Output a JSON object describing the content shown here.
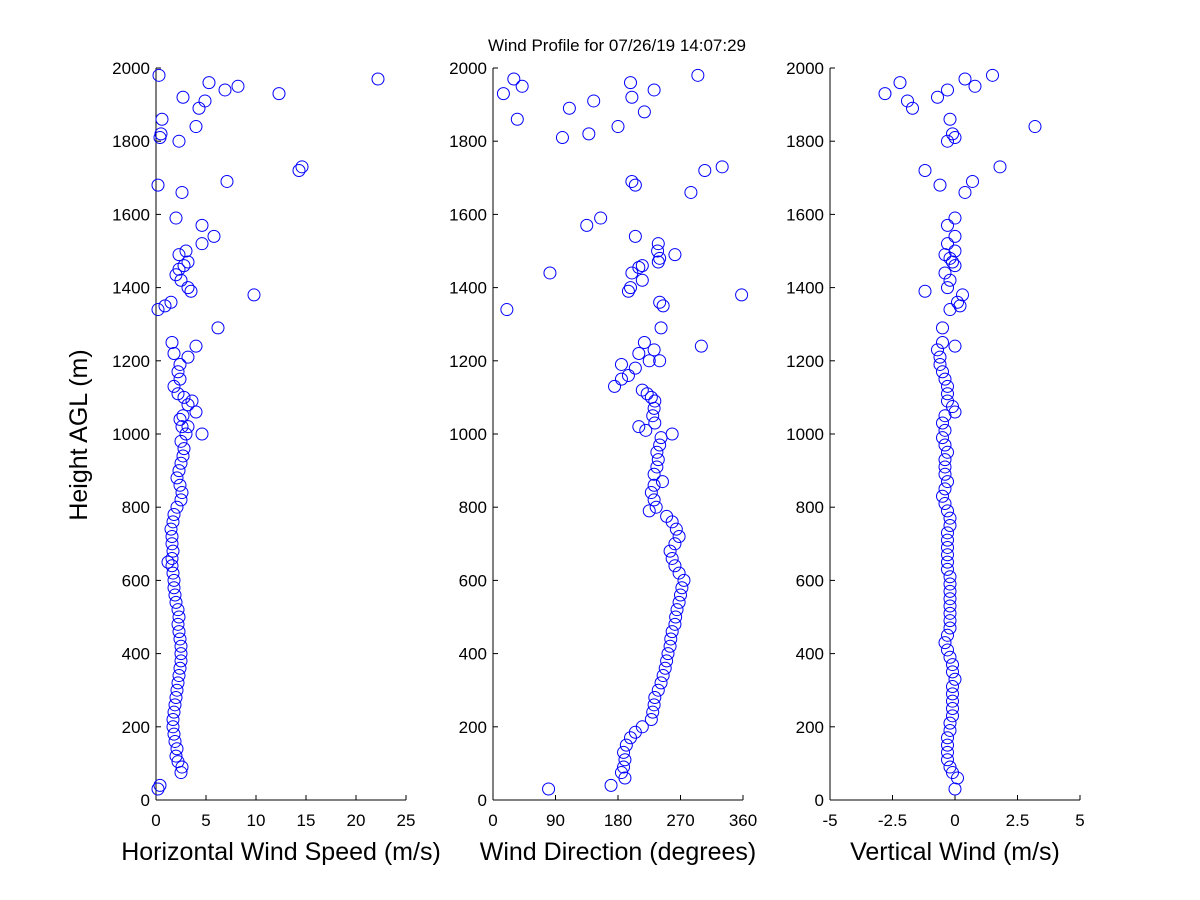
{
  "title": "Wind Profile for  07/26/19 14:07:29",
  "chart_data": [
    {
      "type": "scatter",
      "xlabel": "Horizontal Wind Speed (m/s)",
      "ylabel": "Height AGL (m)",
      "xlim": [
        0,
        25
      ],
      "ylim": [
        0,
        2000
      ],
      "xticks": [
        "0",
        "5",
        "10",
        "15",
        "20",
        "25"
      ],
      "yticks": [
        "0",
        "200",
        "400",
        "600",
        "800",
        "1000",
        "1200",
        "1400",
        "1600",
        "1800",
        "2000"
      ],
      "marker_color": "#0000ff",
      "points": [
        [
          0.2,
          30
        ],
        [
          0.4,
          40
        ],
        [
          2.5,
          75
        ],
        [
          2.6,
          90
        ],
        [
          2.2,
          105
        ],
        [
          2.0,
          120
        ],
        [
          2.1,
          140
        ],
        [
          1.9,
          160
        ],
        [
          1.8,
          180
        ],
        [
          1.7,
          200
        ],
        [
          1.7,
          220
        ],
        [
          1.8,
          240
        ],
        [
          1.9,
          260
        ],
        [
          2.0,
          280
        ],
        [
          2.1,
          300
        ],
        [
          2.2,
          320
        ],
        [
          2.3,
          340
        ],
        [
          2.4,
          360
        ],
        [
          2.5,
          380
        ],
        [
          2.5,
          400
        ],
        [
          2.5,
          420
        ],
        [
          2.4,
          440
        ],
        [
          2.3,
          460
        ],
        [
          2.2,
          480
        ],
        [
          2.3,
          500
        ],
        [
          2.2,
          520
        ],
        [
          2.0,
          540
        ],
        [
          1.9,
          560
        ],
        [
          1.8,
          580
        ],
        [
          1.8,
          600
        ],
        [
          1.7,
          620
        ],
        [
          1.6,
          640
        ],
        [
          1.2,
          650
        ],
        [
          1.6,
          660
        ],
        [
          1.7,
          680
        ],
        [
          1.6,
          700
        ],
        [
          1.6,
          720
        ],
        [
          1.5,
          740
        ],
        [
          1.7,
          760
        ],
        [
          1.8,
          780
        ],
        [
          2.1,
          800
        ],
        [
          2.5,
          820
        ],
        [
          2.6,
          840
        ],
        [
          2.4,
          860
        ],
        [
          2.1,
          880
        ],
        [
          2.3,
          900
        ],
        [
          2.5,
          920
        ],
        [
          2.7,
          940
        ],
        [
          2.8,
          960
        ],
        [
          2.5,
          980
        ],
        [
          3.0,
          1000
        ],
        [
          4.6,
          1000
        ],
        [
          2.6,
          1020
        ],
        [
          3.2,
          1020
        ],
        [
          2.4,
          1040
        ],
        [
          2.7,
          1050
        ],
        [
          4.0,
          1060
        ],
        [
          3.2,
          1080
        ],
        [
          3.6,
          1090
        ],
        [
          2.8,
          1100
        ],
        [
          2.2,
          1110
        ],
        [
          1.8,
          1130
        ],
        [
          2.4,
          1150
        ],
        [
          2.2,
          1170
        ],
        [
          2.4,
          1190
        ],
        [
          3.2,
          1210
        ],
        [
          1.8,
          1220
        ],
        [
          1.6,
          1250
        ],
        [
          4.0,
          1240
        ],
        [
          6.2,
          1290
        ],
        [
          9.8,
          1380
        ],
        [
          0.2,
          1340
        ],
        [
          0.9,
          1350
        ],
        [
          1.5,
          1360
        ],
        [
          3.5,
          1390
        ],
        [
          3.2,
          1400
        ],
        [
          2.5,
          1420
        ],
        [
          2.0,
          1435
        ],
        [
          2.3,
          1450
        ],
        [
          2.8,
          1460
        ],
        [
          3.2,
          1470
        ],
        [
          2.3,
          1490
        ],
        [
          3.0,
          1500
        ],
        [
          4.6,
          1520
        ],
        [
          5.8,
          1540
        ],
        [
          4.6,
          1570
        ],
        [
          2.0,
          1590
        ],
        [
          2.6,
          1660
        ],
        [
          0.2,
          1680
        ],
        [
          7.1,
          1690
        ],
        [
          14.3,
          1720
        ],
        [
          14.6,
          1730
        ],
        [
          2.3,
          1800
        ],
        [
          0.4,
          1810
        ],
        [
          0.5,
          1820
        ],
        [
          4.0,
          1840
        ],
        [
          0.6,
          1860
        ],
        [
          4.3,
          1890
        ],
        [
          2.7,
          1920
        ],
        [
          4.9,
          1910
        ],
        [
          12.3,
          1930
        ],
        [
          6.9,
          1940
        ],
        [
          8.2,
          1950
        ],
        [
          5.3,
          1960
        ],
        [
          22.2,
          1970
        ],
        [
          0.3,
          1980
        ]
      ]
    },
    {
      "type": "scatter",
      "xlabel": "Wind Direction (degrees)",
      "xlim": [
        0,
        360
      ],
      "ylim": [
        0,
        2000
      ],
      "xticks": [
        "0",
        "90",
        "180",
        "270",
        "360"
      ],
      "yticks": [
        "0",
        "200",
        "400",
        "600",
        "800",
        "1000",
        "1200",
        "1400",
        "1600",
        "1800",
        "2000"
      ],
      "marker_color": "#0000ff",
      "points": [
        [
          80,
          30
        ],
        [
          170,
          40
        ],
        [
          190,
          60
        ],
        [
          185,
          75
        ],
        [
          188,
          90
        ],
        [
          190,
          110
        ],
        [
          188,
          130
        ],
        [
          192,
          150
        ],
        [
          198,
          170
        ],
        [
          205,
          185
        ],
        [
          215,
          200
        ],
        [
          228,
          220
        ],
        [
          230,
          240
        ],
        [
          232,
          260
        ],
        [
          233,
          280
        ],
        [
          238,
          300
        ],
        [
          242,
          320
        ],
        [
          245,
          340
        ],
        [
          248,
          360
        ],
        [
          250,
          380
        ],
        [
          252,
          400
        ],
        [
          255,
          420
        ],
        [
          256,
          440
        ],
        [
          258,
          460
        ],
        [
          262,
          480
        ],
        [
          263,
          500
        ],
        [
          265,
          520
        ],
        [
          268,
          540
        ],
        [
          270,
          560
        ],
        [
          272,
          580
        ],
        [
          275,
          600
        ],
        [
          268,
          620
        ],
        [
          262,
          640
        ],
        [
          258,
          660
        ],
        [
          255,
          680
        ],
        [
          262,
          700
        ],
        [
          268,
          720
        ],
        [
          264,
          740
        ],
        [
          258,
          760
        ],
        [
          250,
          775
        ],
        [
          225,
          790
        ],
        [
          235,
          800
        ],
        [
          232,
          820
        ],
        [
          228,
          840
        ],
        [
          232,
          860
        ],
        [
          244,
          870
        ],
        [
          232,
          890
        ],
        [
          236,
          910
        ],
        [
          238,
          930
        ],
        [
          236,
          950
        ],
        [
          240,
          970
        ],
        [
          242,
          990
        ],
        [
          258,
          1000
        ],
        [
          210,
          1020
        ],
        [
          220,
          1010
        ],
        [
          233,
          1030
        ],
        [
          230,
          1050
        ],
        [
          232,
          1070
        ],
        [
          233,
          1090
        ],
        [
          228,
          1100
        ],
        [
          222,
          1110
        ],
        [
          215,
          1120
        ],
        [
          175,
          1130
        ],
        [
          185,
          1150
        ],
        [
          195,
          1160
        ],
        [
          185,
          1190
        ],
        [
          225,
          1200
        ],
        [
          205,
          1180
        ],
        [
          240,
          1200
        ],
        [
          210,
          1220
        ],
        [
          232,
          1230
        ],
        [
          218,
          1250
        ],
        [
          242,
          1290
        ],
        [
          300,
          1240
        ],
        [
          20,
          1340
        ],
        [
          245,
          1350
        ],
        [
          240,
          1360
        ],
        [
          358,
          1380
        ],
        [
          195,
          1390
        ],
        [
          198,
          1400
        ],
        [
          215,
          1420
        ],
        [
          82,
          1440
        ],
        [
          200,
          1440
        ],
        [
          210,
          1455
        ],
        [
          215,
          1460
        ],
        [
          238,
          1470
        ],
        [
          240,
          1480
        ],
        [
          262,
          1490
        ],
        [
          237,
          1500
        ],
        [
          238,
          1520
        ],
        [
          205,
          1540
        ],
        [
          135,
          1570
        ],
        [
          155,
          1590
        ],
        [
          205,
          1680
        ],
        [
          200,
          1690
        ],
        [
          285,
          1660
        ],
        [
          305,
          1720
        ],
        [
          330,
          1730
        ],
        [
          100,
          1810
        ],
        [
          138,
          1820
        ],
        [
          180,
          1840
        ],
        [
          35,
          1860
        ],
        [
          110,
          1890
        ],
        [
          218,
          1880
        ],
        [
          145,
          1910
        ],
        [
          200,
          1920
        ],
        [
          15,
          1930
        ],
        [
          42,
          1950
        ],
        [
          232,
          1940
        ],
        [
          198,
          1960
        ],
        [
          30,
          1970
        ],
        [
          295,
          1980
        ]
      ]
    },
    {
      "type": "scatter",
      "xlabel": "Vertical Wind (m/s)",
      "xlim": [
        -5,
        5
      ],
      "ylim": [
        0,
        2000
      ],
      "xticks": [
        "-5",
        "-2.5",
        "0",
        "2.5",
        "5"
      ],
      "yticks": [
        "0",
        "200",
        "400",
        "600",
        "800",
        "1000",
        "1200",
        "1400",
        "1600",
        "1800",
        "2000"
      ],
      "marker_color": "#0000ff",
      "points": [
        [
          0.0,
          30
        ],
        [
          0.1,
          60
        ],
        [
          -0.1,
          75
        ],
        [
          -0.2,
          90
        ],
        [
          -0.3,
          110
        ],
        [
          -0.3,
          130
        ],
        [
          -0.3,
          150
        ],
        [
          -0.3,
          170
        ],
        [
          -0.2,
          190
        ],
        [
          -0.2,
          210
        ],
        [
          -0.1,
          230
        ],
        [
          -0.1,
          250
        ],
        [
          -0.1,
          270
        ],
        [
          -0.1,
          290
        ],
        [
          -0.1,
          310
        ],
        [
          0.0,
          330
        ],
        [
          -0.1,
          350
        ],
        [
          -0.1,
          370
        ],
        [
          -0.2,
          390
        ],
        [
          -0.3,
          410
        ],
        [
          -0.4,
          430
        ],
        [
          -0.3,
          450
        ],
        [
          -0.2,
          470
        ],
        [
          -0.2,
          490
        ],
        [
          -0.2,
          510
        ],
        [
          -0.2,
          530
        ],
        [
          -0.2,
          550
        ],
        [
          -0.2,
          570
        ],
        [
          -0.2,
          590
        ],
        [
          -0.2,
          610
        ],
        [
          -0.3,
          630
        ],
        [
          -0.3,
          650
        ],
        [
          -0.3,
          670
        ],
        [
          -0.3,
          690
        ],
        [
          -0.3,
          710
        ],
        [
          -0.3,
          730
        ],
        [
          -0.2,
          750
        ],
        [
          -0.2,
          770
        ],
        [
          -0.3,
          790
        ],
        [
          -0.4,
          810
        ],
        [
          -0.5,
          830
        ],
        [
          -0.4,
          850
        ],
        [
          -0.3,
          870
        ],
        [
          -0.4,
          890
        ],
        [
          -0.4,
          910
        ],
        [
          -0.4,
          930
        ],
        [
          -0.3,
          950
        ],
        [
          -0.4,
          970
        ],
        [
          -0.5,
          990
        ],
        [
          -0.4,
          1010
        ],
        [
          -0.5,
          1030
        ],
        [
          -0.4,
          1050
        ],
        [
          0.0,
          1060
        ],
        [
          -0.1,
          1075
        ],
        [
          -0.3,
          1090
        ],
        [
          -0.3,
          1110
        ],
        [
          -0.3,
          1130
        ],
        [
          -0.4,
          1150
        ],
        [
          -0.5,
          1170
        ],
        [
          -0.6,
          1190
        ],
        [
          -0.6,
          1210
        ],
        [
          -0.7,
          1230
        ],
        [
          -0.5,
          1250
        ],
        [
          0.0,
          1240
        ],
        [
          -0.5,
          1290
        ],
        [
          0.2,
          1350
        ],
        [
          0.1,
          1360
        ],
        [
          -0.2,
          1340
        ],
        [
          0.3,
          1380
        ],
        [
          -0.3,
          1400
        ],
        [
          -1.2,
          1390
        ],
        [
          -0.2,
          1420
        ],
        [
          -0.4,
          1440
        ],
        [
          0.0,
          1460
        ],
        [
          -0.1,
          1470
        ],
        [
          -0.2,
          1480
        ],
        [
          -0.4,
          1490
        ],
        [
          0.0,
          1500
        ],
        [
          -0.3,
          1520
        ],
        [
          0.0,
          1540
        ],
        [
          -0.3,
          1570
        ],
        [
          0.0,
          1590
        ],
        [
          0.4,
          1660
        ],
        [
          -0.6,
          1680
        ],
        [
          0.7,
          1690
        ],
        [
          -1.2,
          1720
        ],
        [
          1.8,
          1730
        ],
        [
          -0.3,
          1800
        ],
        [
          0.0,
          1810
        ],
        [
          -0.1,
          1820
        ],
        [
          3.2,
          1840
        ],
        [
          -0.2,
          1860
        ],
        [
          -1.7,
          1890
        ],
        [
          -1.9,
          1910
        ],
        [
          -0.7,
          1920
        ],
        [
          -2.8,
          1930
        ],
        [
          -0.3,
          1940
        ],
        [
          0.8,
          1950
        ],
        [
          -2.2,
          1960
        ],
        [
          0.4,
          1970
        ],
        [
          1.5,
          1980
        ]
      ]
    }
  ]
}
